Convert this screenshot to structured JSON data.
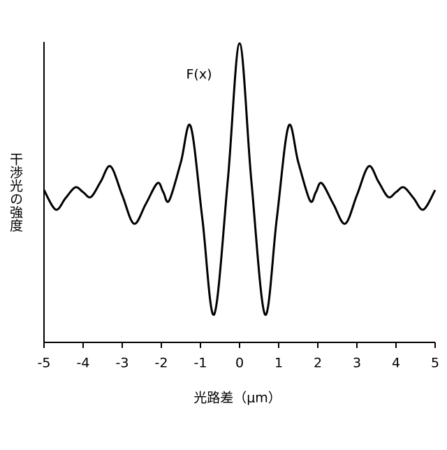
{
  "chart_data": {
    "type": "line",
    "annotation": "F(x)",
    "x_label": "光路差（μm）",
    "y_label": "干渉光の強度",
    "x": [
      -5,
      -4.7,
      -4.45,
      -4.2,
      -4.0,
      -3.8,
      -3.55,
      -3.3,
      -3.0,
      -2.7,
      -2.4,
      -2.1,
      -1.95,
      -1.8,
      -1.5,
      -1.25,
      -0.95,
      -0.65,
      -0.3,
      0,
      0.3,
      0.65,
      0.95,
      1.25,
      1.5,
      1.8,
      1.95,
      2.1,
      2.4,
      2.7,
      3.0,
      3.3,
      3.55,
      3.8,
      4.0,
      4.2,
      4.45,
      4.7,
      5
    ],
    "values": [
      0.507,
      0.442,
      0.48,
      0.516,
      0.5,
      0.484,
      0.535,
      0.586,
      0.49,
      0.395,
      0.46,
      0.53,
      0.5,
      0.472,
      0.6,
      0.719,
      0.41,
      0.093,
      0.54,
      0.995,
      0.54,
      0.093,
      0.41,
      0.719,
      0.6,
      0.472,
      0.5,
      0.53,
      0.46,
      0.395,
      0.49,
      0.586,
      0.535,
      0.484,
      0.5,
      0.516,
      0.48,
      0.442,
      0.507
    ],
    "color": "#000000",
    "xlim": [
      -5,
      5
    ],
    "xticks": [
      -5,
      -4,
      -3,
      -2,
      -1,
      0,
      1,
      2,
      3,
      4,
      5
    ],
    "ylim": [
      0,
      1
    ]
  }
}
